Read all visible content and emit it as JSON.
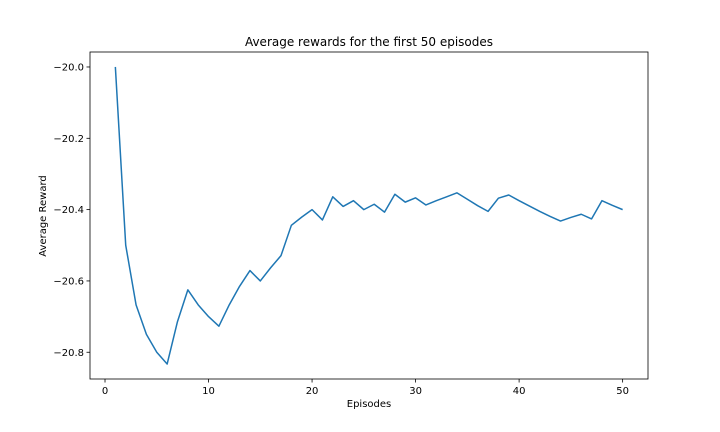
{
  "chart_data": {
    "type": "line",
    "title": "Average rewards for the first 50 episodes",
    "xlabel": "Episodes",
    "ylabel": "Average Reward",
    "xlim": [
      -1.45,
      52.45
    ],
    "ylim": [
      -20.875,
      -19.958
    ],
    "xticks": [
      0,
      10,
      20,
      30,
      40,
      50
    ],
    "xtick_labels": [
      "0",
      "10",
      "20",
      "30",
      "40",
      "50"
    ],
    "yticks": [
      -20.0,
      -20.2,
      -20.4,
      -20.6,
      -20.8
    ],
    "ytick_labels": [
      "−20.0",
      "−20.2",
      "−20.4",
      "−20.6",
      "−20.8"
    ],
    "grid": false,
    "series": [
      {
        "color": "#1f77b4",
        "x": [
          1,
          2,
          3,
          4,
          5,
          6,
          7,
          8,
          9,
          10,
          11,
          12,
          13,
          14,
          15,
          16,
          17,
          18,
          19,
          20,
          21,
          22,
          23,
          24,
          25,
          26,
          27,
          28,
          29,
          30,
          31,
          32,
          33,
          34,
          35,
          36,
          37,
          38,
          39,
          40,
          41,
          42,
          43,
          44,
          45,
          46,
          47,
          48,
          49,
          50
        ],
        "values": [
          -20.0,
          -20.5,
          -20.667,
          -20.75,
          -20.8,
          -20.833,
          -20.714,
          -20.625,
          -20.667,
          -20.7,
          -20.727,
          -20.667,
          -20.615,
          -20.571,
          -20.6,
          -20.563,
          -20.529,
          -20.444,
          -20.421,
          -20.4,
          -20.429,
          -20.364,
          -20.391,
          -20.375,
          -20.4,
          -20.385,
          -20.407,
          -20.357,
          -20.379,
          -20.367,
          -20.387,
          -20.375,
          -20.364,
          -20.353,
          -20.371,
          -20.389,
          -20.405,
          -20.368,
          -20.359,
          -20.375,
          -20.39,
          -20.405,
          -20.419,
          -20.432,
          -20.422,
          -20.413,
          -20.426,
          -20.375,
          -20.388,
          -20.4
        ]
      }
    ]
  }
}
